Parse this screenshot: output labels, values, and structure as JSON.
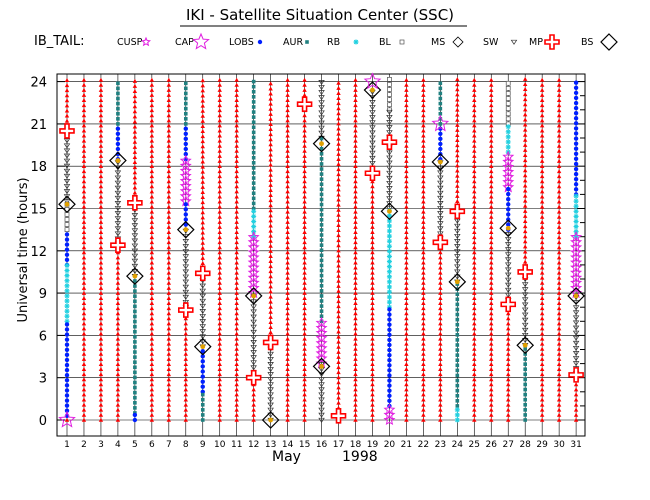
{
  "chart_data": {
    "type": "scatter",
    "title": "IKI - Satellite Situation Center (SSC)",
    "legend_title": "IB_TAIL:",
    "legend_placement": "top",
    "xlabel_month": "May",
    "xlabel_year": "1998",
    "ylabel": "Universal time (hours)",
    "xlim": [
      1,
      31
    ],
    "ylim": [
      0,
      24
    ],
    "grid": true,
    "days": [
      1,
      2,
      3,
      4,
      5,
      6,
      7,
      8,
      9,
      10,
      11,
      12,
      13,
      14,
      15,
      16,
      17,
      18,
      19,
      20,
      21,
      22,
      23,
      24,
      25,
      26,
      27,
      28,
      29,
      30,
      31
    ],
    "y_ticks": [
      0,
      3,
      6,
      9,
      12,
      15,
      18,
      21,
      24
    ],
    "categories": [
      "CUSP",
      "CAP",
      "LOBS",
      "AUR",
      "RB",
      "BL",
      "MS",
      "SW",
      "MP",
      "BS"
    ],
    "series": [
      {
        "name": "CUSP",
        "color": "#e020e0",
        "symbol": "star-small"
      },
      {
        "name": "CAP",
        "color": "#e020e0",
        "symbol": "star"
      },
      {
        "name": "LOBS",
        "color": "#0020ff",
        "symbol": "dot"
      },
      {
        "name": "AUR",
        "color": "#208080",
        "symbol": "square-small"
      },
      {
        "name": "RB",
        "color": "#20d0e0",
        "symbol": "asterisk"
      },
      {
        "name": "BL",
        "color": "#505050",
        "symbol": "square-open"
      },
      {
        "name": "MS",
        "color": "#e0a000",
        "symbol": "diamond-dot"
      },
      {
        "name": "SW",
        "color": "#303030",
        "symbol": "triangle-down"
      },
      {
        "name": "MP",
        "color": "#ff0000",
        "symbol": "triangle-up"
      },
      {
        "name": "BS",
        "color": "#000000",
        "symbol": "diamond"
      }
    ],
    "columns": [
      {
        "day": 1,
        "segments": [
          {
            "region": "SW",
            "from": 15.5,
            "to": 20.5
          },
          {
            "region": "BL",
            "from": 13.5,
            "to": 15.5
          },
          {
            "region": "LOBS",
            "from": 11,
            "to": 13.5
          },
          {
            "region": "RB",
            "from": 7,
            "to": 11
          },
          {
            "region": "LOBS",
            "from": 0.3,
            "to": 7
          },
          {
            "region": "MP",
            "from": 20.5,
            "to": 24.2
          },
          {
            "region": "MP",
            "from": 0,
            "to": 0.3
          }
        ],
        "crossings": [
          {
            "type": "MP",
            "t": 20.5
          },
          {
            "type": "BS",
            "t": 15.3
          },
          {
            "type": "MS",
            "t": 15.3
          },
          {
            "type": "CAP",
            "t": 0
          }
        ]
      },
      {
        "day": 2,
        "segments": [
          {
            "region": "MP",
            "from": 0,
            "to": 24.2
          }
        ],
        "crossings": []
      },
      {
        "day": 3,
        "segments": [
          {
            "region": "MP",
            "from": 0,
            "to": 24.2
          }
        ],
        "crossings": []
      },
      {
        "day": 4,
        "segments": [
          {
            "region": "AUR",
            "from": 21,
            "to": 24.2
          },
          {
            "region": "LOBS",
            "from": 18.5,
            "to": 21
          },
          {
            "region": "SW",
            "from": 12.5,
            "to": 18.5
          },
          {
            "region": "MP",
            "from": 0,
            "to": 12.5
          }
        ],
        "crossings": [
          {
            "type": "BS",
            "t": 18.4
          },
          {
            "type": "MS",
            "t": 18.4
          },
          {
            "type": "MP",
            "t": 12.4
          }
        ]
      },
      {
        "day": 5,
        "segments": [
          {
            "region": "MP",
            "from": 15.4,
            "to": 24.2
          },
          {
            "region": "SW",
            "from": 10.2,
            "to": 15.4
          },
          {
            "region": "AUR",
            "from": 0.5,
            "to": 10.2
          },
          {
            "region": "LOBS",
            "from": 0,
            "to": 0.5
          }
        ],
        "crossings": [
          {
            "type": "MP",
            "t": 15.4
          },
          {
            "type": "BS",
            "t": 10.2
          },
          {
            "type": "MS",
            "t": 10.2
          }
        ]
      },
      {
        "day": 6,
        "segments": [
          {
            "region": "MP",
            "from": 0,
            "to": 24.2
          }
        ],
        "crossings": []
      },
      {
        "day": 7,
        "segments": [
          {
            "region": "MP",
            "from": 0,
            "to": 24.2
          }
        ],
        "crossings": []
      },
      {
        "day": 8,
        "segments": [
          {
            "region": "AUR",
            "from": 21,
            "to": 24.2
          },
          {
            "region": "LOBS",
            "from": 18.5,
            "to": 21
          },
          {
            "region": "CAP",
            "from": 15.5,
            "to": 18.5
          },
          {
            "region": "LOBS",
            "from": 13.5,
            "to": 15.5
          },
          {
            "region": "SW",
            "from": 8,
            "to": 13.5
          },
          {
            "region": "MP",
            "from": 0,
            "to": 8
          }
        ],
        "crossings": [
          {
            "type": "BS",
            "t": 13.5
          },
          {
            "type": "MS",
            "t": 13.5
          },
          {
            "type": "MP",
            "t": 7.8
          }
        ]
      },
      {
        "day": 9,
        "segments": [
          {
            "region": "MP",
            "from": 10.4,
            "to": 24.2
          },
          {
            "region": "SW",
            "from": 5.2,
            "to": 10.4
          },
          {
            "region": "LOBS",
            "from": 2,
            "to": 5.2
          },
          {
            "region": "AUR",
            "from": 0,
            "to": 2
          }
        ],
        "crossings": [
          {
            "type": "MP",
            "t": 10.4
          },
          {
            "type": "BS",
            "t": 5.2
          },
          {
            "type": "MS",
            "t": 5.2
          }
        ]
      },
      {
        "day": 10,
        "segments": [
          {
            "region": "MP",
            "from": 0,
            "to": 24.2
          }
        ],
        "crossings": []
      },
      {
        "day": 11,
        "segments": [
          {
            "region": "MP",
            "from": 0,
            "to": 24.2
          }
        ],
        "crossings": []
      },
      {
        "day": 12,
        "segments": [
          {
            "region": "AUR",
            "from": 15,
            "to": 24.2
          },
          {
            "region": "RB",
            "from": 13,
            "to": 15
          },
          {
            "region": "CAP",
            "from": 9,
            "to": 13
          },
          {
            "region": "SW",
            "from": 3,
            "to": 9
          },
          {
            "region": "MP",
            "from": 0,
            "to": 3
          }
        ],
        "crossings": [
          {
            "type": "BS",
            "t": 8.8
          },
          {
            "type": "MS",
            "t": 8.8
          },
          {
            "type": "MP",
            "t": 3
          }
        ]
      },
      {
        "day": 13,
        "segments": [
          {
            "region": "MP",
            "from": 5.5,
            "to": 24.2
          },
          {
            "region": "SW",
            "from": 0,
            "to": 5.5
          }
        ],
        "crossings": [
          {
            "type": "MP",
            "t": 5.5
          },
          {
            "type": "BS",
            "t": 0
          },
          {
            "type": "MS",
            "t": 0
          }
        ]
      },
      {
        "day": 14,
        "segments": [
          {
            "region": "MP",
            "from": 0,
            "to": 24.2
          }
        ],
        "crossings": []
      },
      {
        "day": 15,
        "segments": [
          {
            "region": "MP",
            "from": 0,
            "to": 24.2
          }
        ],
        "crossings": [
          {
            "type": "MP",
            "t": 22.4
          }
        ]
      },
      {
        "day": 16,
        "segments": [
          {
            "region": "SW",
            "from": 20,
            "to": 24.2
          },
          {
            "region": "AUR",
            "from": 7,
            "to": 20
          },
          {
            "region": "CAP",
            "from": 4,
            "to": 7
          },
          {
            "region": "SW",
            "from": 0,
            "to": 4
          }
        ],
        "crossings": [
          {
            "type": "BS",
            "t": 19.6
          },
          {
            "type": "MS",
            "t": 19.6
          },
          {
            "type": "BS",
            "t": 3.8
          },
          {
            "type": "MS",
            "t": 3.8
          }
        ]
      },
      {
        "day": 17,
        "segments": [
          {
            "region": "MP",
            "from": 0.5,
            "to": 24.2
          }
        ],
        "crossings": [
          {
            "type": "MP",
            "t": 0.3
          }
        ]
      },
      {
        "day": 18,
        "segments": [
          {
            "region": "MP",
            "from": 0,
            "to": 24.2
          }
        ],
        "crossings": []
      },
      {
        "day": 19,
        "segments": [
          {
            "region": "MP",
            "from": 0,
            "to": 17.5
          },
          {
            "region": "SW",
            "from": 17.5,
            "to": 23.5
          }
        ],
        "crossings": [
          {
            "type": "MP",
            "t": 17.5
          },
          {
            "type": "BS",
            "t": 23.4
          },
          {
            "type": "MS",
            "t": 23.4
          },
          {
            "type": "CAP",
            "t": 24
          }
        ]
      },
      {
        "day": 20,
        "segments": [
          {
            "region": "BL",
            "from": 22,
            "to": 24.2
          },
          {
            "region": "SW",
            "from": 15,
            "to": 22
          },
          {
            "region": "RB",
            "from": 8,
            "to": 15
          },
          {
            "region": "LOBS",
            "from": 1,
            "to": 8
          },
          {
            "region": "CAP",
            "from": 0,
            "to": 1
          }
        ],
        "crossings": [
          {
            "type": "MP",
            "t": 19.7
          },
          {
            "type": "BS",
            "t": 14.8
          },
          {
            "type": "MS",
            "t": 14.8
          }
        ]
      },
      {
        "day": 21,
        "segments": [
          {
            "region": "MP",
            "from": 0,
            "to": 24.2
          }
        ],
        "crossings": []
      },
      {
        "day": 22,
        "segments": [
          {
            "region": "MP",
            "from": 0,
            "to": 24.2
          }
        ],
        "crossings": []
      },
      {
        "day": 23,
        "segments": [
          {
            "region": "AUR",
            "from": 21,
            "to": 24.2
          },
          {
            "region": "LOBS",
            "from": 18.5,
            "to": 21
          },
          {
            "region": "SW",
            "from": 12.5,
            "to": 18.5
          },
          {
            "region": "MP",
            "from": 0,
            "to": 12.5
          }
        ],
        "crossings": [
          {
            "type": "BS",
            "t": 18.3
          },
          {
            "type": "MS",
            "t": 18.3
          },
          {
            "type": "MP",
            "t": 12.6
          },
          {
            "type": "CUSP",
            "t": 21
          }
        ]
      },
      {
        "day": 24,
        "segments": [
          {
            "region": "MP",
            "from": 14.8,
            "to": 24.2
          },
          {
            "region": "SW",
            "from": 9.8,
            "to": 14.8
          },
          {
            "region": "AUR",
            "from": 1,
            "to": 9.8
          },
          {
            "region": "RB",
            "from": 0,
            "to": 1
          }
        ],
        "crossings": [
          {
            "type": "MP",
            "t": 14.8
          },
          {
            "type": "BS",
            "t": 9.8
          },
          {
            "type": "MS",
            "t": 9.8
          }
        ]
      },
      {
        "day": 25,
        "segments": [
          {
            "region": "MP",
            "from": 0,
            "to": 24.2
          }
        ],
        "crossings": []
      },
      {
        "day": 26,
        "segments": [
          {
            "region": "MP",
            "from": 0,
            "to": 24.2
          }
        ],
        "crossings": []
      },
      {
        "day": 27,
        "segments": [
          {
            "region": "BL",
            "from": 21,
            "to": 24.2
          },
          {
            "region": "RB",
            "from": 19,
            "to": 21
          },
          {
            "region": "CAP",
            "from": 16.5,
            "to": 19
          },
          {
            "region": "LOBS",
            "from": 13.5,
            "to": 16.5
          },
          {
            "region": "SW",
            "from": 8.5,
            "to": 13.5
          },
          {
            "region": "MP",
            "from": 0,
            "to": 8.5
          }
        ],
        "crossings": [
          {
            "type": "BS",
            "t": 13.6
          },
          {
            "type": "MS",
            "t": 13.6
          },
          {
            "type": "MP",
            "t": 8.2
          }
        ]
      },
      {
        "day": 28,
        "segments": [
          {
            "region": "MP",
            "from": 10.5,
            "to": 24.2
          },
          {
            "region": "SW",
            "from": 5.3,
            "to": 10.5
          },
          {
            "region": "AUR",
            "from": 0,
            "to": 5.3
          }
        ],
        "crossings": [
          {
            "type": "MP",
            "t": 10.5
          },
          {
            "type": "BS",
            "t": 5.3
          },
          {
            "type": "MS",
            "t": 5.3
          }
        ]
      },
      {
        "day": 29,
        "segments": [
          {
            "region": "MP",
            "from": 0,
            "to": 24.2
          }
        ],
        "crossings": []
      },
      {
        "day": 30,
        "segments": [
          {
            "region": "MP",
            "from": 0,
            "to": 24.2
          }
        ],
        "crossings": []
      },
      {
        "day": 31,
        "segments": [
          {
            "region": "LOBS",
            "from": 16,
            "to": 24.2
          },
          {
            "region": "RB",
            "from": 13,
            "to": 16
          },
          {
            "region": "CAP",
            "from": 9,
            "to": 13
          },
          {
            "region": "SW",
            "from": 3.3,
            "to": 9
          },
          {
            "region": "MP",
            "from": 0,
            "to": 3.3
          }
        ],
        "crossings": [
          {
            "type": "BS",
            "t": 8.8
          },
          {
            "type": "MS",
            "t": 8.8
          },
          {
            "type": "MP",
            "t": 3.2
          }
        ]
      }
    ]
  }
}
